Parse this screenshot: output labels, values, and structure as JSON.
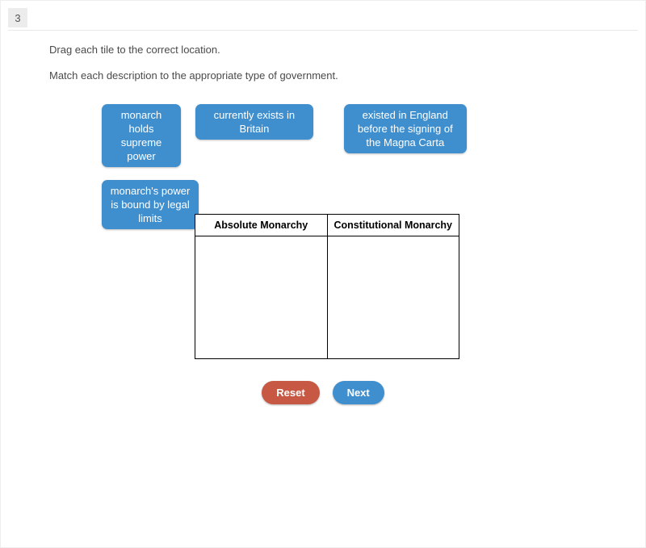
{
  "question_number": "3",
  "instruction_line1": "Drag each tile to the correct location.",
  "instruction_line2": "Match each description to the appropriate type of government.",
  "tiles": {
    "t1": "monarch holds supreme power",
    "t2": "currently exists in Britain",
    "t3": "existed in England before the signing of the Magna Carta",
    "t4": "monarch's power is bound by legal limits"
  },
  "table": {
    "col1_header": "Absolute Monarchy",
    "col2_header": "Constitutional Monarchy"
  },
  "buttons": {
    "reset": "Reset",
    "next": "Next"
  },
  "colors": {
    "tile_bg": "#3f8fcf",
    "tile_text": "#ffffff",
    "reset_bg": "#c75843",
    "next_bg": "#3f8fcf",
    "page_bg": "#ffffff",
    "border": "#000000",
    "qnum_bg": "#ececec"
  }
}
